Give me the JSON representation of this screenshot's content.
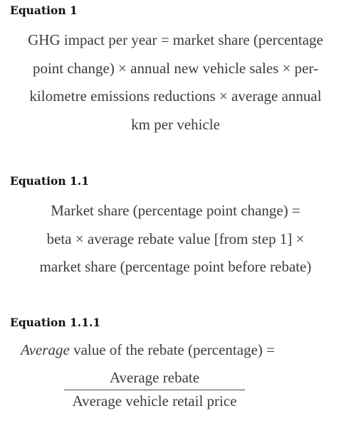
{
  "eq1": {
    "heading": "Equation 1",
    "lines": [
      "GHG impact per year = market share (percentage",
      "point change) × annual new vehicle sales × per-",
      "kilometre emissions reductions × average annual",
      "km per vehicle"
    ]
  },
  "eq11": {
    "heading": "Equation 1.1",
    "lines": [
      "Market share (percentage point change) =",
      "beta × average rebate value [from step 1] ×",
      "market share (percentage point before rebate)"
    ]
  },
  "eq111": {
    "heading": "Equation 1.1.1",
    "lhs_italic": "Average",
    "lhs_rest": " value of the rebate (percentage) =",
    "numerator": "Average rebate",
    "denominator": "Average vehicle retail price"
  }
}
